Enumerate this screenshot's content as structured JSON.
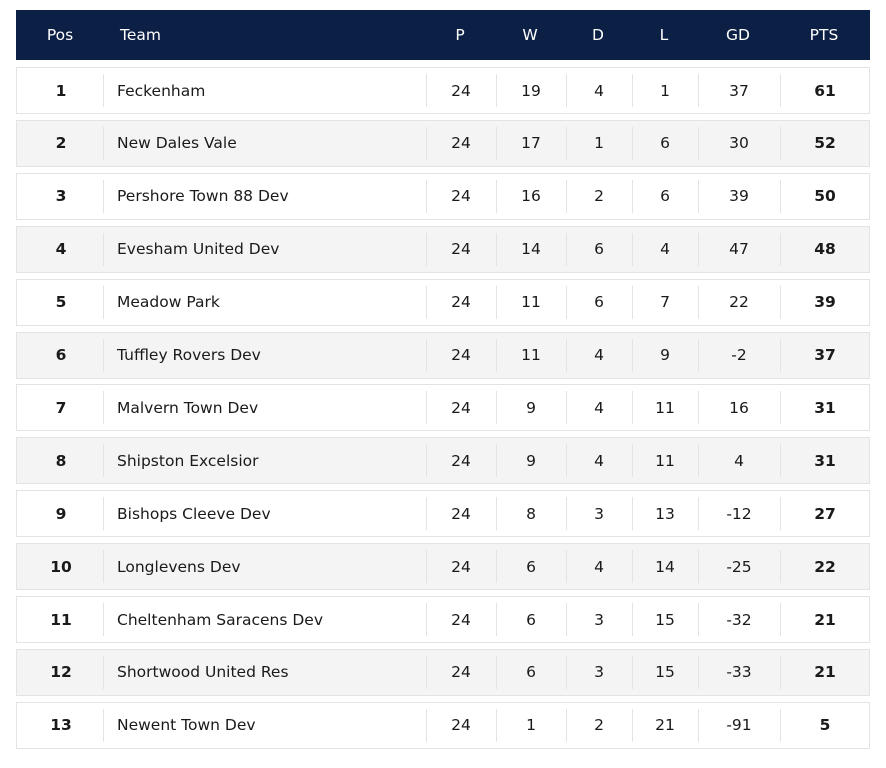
{
  "table": {
    "headers": [
      "Pos",
      "Team",
      "P",
      "W",
      "D",
      "L",
      "GD",
      "PTS"
    ],
    "rows": [
      [
        1,
        "Feckenham",
        24,
        19,
        4,
        1,
        37,
        61
      ],
      [
        2,
        "New Dales Vale",
        24,
        17,
        1,
        6,
        30,
        52
      ],
      [
        3,
        "Pershore Town 88 Dev",
        24,
        16,
        2,
        6,
        39,
        50
      ],
      [
        4,
        "Evesham United Dev",
        24,
        14,
        6,
        4,
        47,
        48
      ],
      [
        5,
        "Meadow Park",
        24,
        11,
        6,
        7,
        22,
        39
      ],
      [
        6,
        "Tuffley Rovers Dev",
        24,
        11,
        4,
        9,
        -2,
        37
      ],
      [
        7,
        "Malvern Town Dev",
        24,
        9,
        4,
        11,
        16,
        31
      ],
      [
        8,
        "Shipston Excelsior",
        24,
        9,
        4,
        11,
        4,
        31
      ],
      [
        9,
        "Bishops Cleeve Dev",
        24,
        8,
        3,
        13,
        -12,
        27
      ],
      [
        10,
        "Longlevens Dev",
        24,
        6,
        4,
        14,
        -25,
        22
      ],
      [
        11,
        "Cheltenham Saracens Dev",
        24,
        6,
        3,
        15,
        -32,
        21
      ],
      [
        12,
        "Shortwood United Res",
        24,
        6,
        3,
        15,
        -33,
        21
      ],
      [
        13,
        "Newent Town Dev",
        24,
        1,
        2,
        21,
        -91,
        5
      ]
    ]
  }
}
